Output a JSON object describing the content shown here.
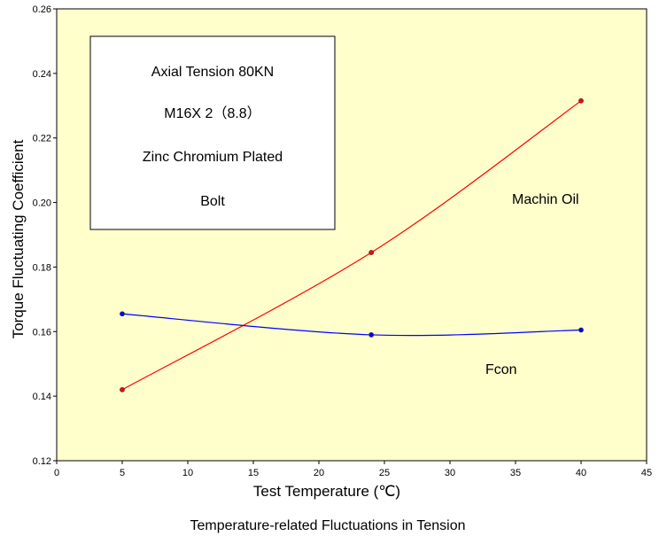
{
  "chart_data": {
    "type": "line",
    "x": [
      5,
      24,
      40
    ],
    "series": [
      {
        "name": "Machin Oil",
        "values": [
          0.142,
          0.1845,
          0.2315
        ],
        "color": "#ff0000"
      },
      {
        "name": "Fcon",
        "values": [
          0.1655,
          0.159,
          0.1605
        ],
        "color": "#0000ff"
      }
    ],
    "xlabel": "Test Temperature (℃)",
    "ylabel": "Torque Fluctuating Coefficient",
    "xlim": [
      0,
      45
    ],
    "ylim": [
      0.12,
      0.26
    ],
    "xticks": [
      "0",
      "5",
      "10",
      "15",
      "20",
      "25",
      "30",
      "35",
      "40",
      "45"
    ],
    "yticks": [
      "0.12",
      "0.14",
      "0.16",
      "0.18",
      "0.20",
      "0.22",
      "0.24",
      "0.26"
    ],
    "annotation_box": [
      "Axial Tension 80KN",
      "M16X 2（8.8）",
      "Zinc Chromium Plated",
      "Bolt"
    ],
    "caption": "Temperature-related Fluctuations in Tension",
    "plot_background": "#ffffcc",
    "grid": false
  }
}
